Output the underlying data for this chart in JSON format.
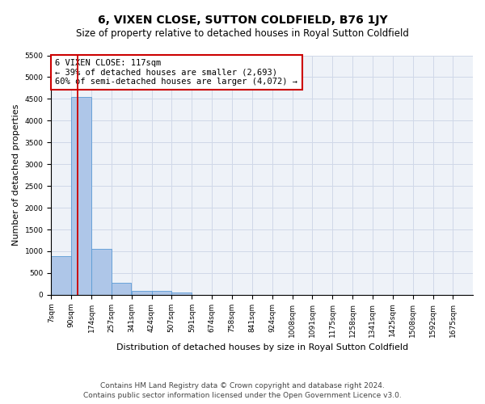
{
  "title": "6, VIXEN CLOSE, SUTTON COLDFIELD, B76 1JY",
  "subtitle": "Size of property relative to detached houses in Royal Sutton Coldfield",
  "xlabel": "Distribution of detached houses by size in Royal Sutton Coldfield",
  "ylabel": "Number of detached properties",
  "footnote1": "Contains HM Land Registry data © Crown copyright and database right 2024.",
  "footnote2": "Contains public sector information licensed under the Open Government Licence v3.0.",
  "annotation_title": "6 VIXEN CLOSE: 117sqm",
  "annotation_line1": "← 39% of detached houses are smaller (2,693)",
  "annotation_line2": "60% of semi-detached houses are larger (4,072) →",
  "bar_bins": [
    7,
    90,
    174,
    257,
    341,
    424,
    507,
    591,
    674,
    758,
    841,
    924,
    1008,
    1091,
    1175,
    1258,
    1341,
    1425,
    1508,
    1592,
    1675
  ],
  "bar_heights": [
    880,
    4540,
    1050,
    280,
    90,
    90,
    55,
    0,
    0,
    0,
    0,
    0,
    0,
    0,
    0,
    0,
    0,
    0,
    0,
    0
  ],
  "bar_color": "#aec6e8",
  "bar_edgecolor": "#5b9bd5",
  "vline_x": 117,
  "vline_color": "#cc0000",
  "ylim": [
    0,
    5500
  ],
  "yticks": [
    0,
    500,
    1000,
    1500,
    2000,
    2500,
    3000,
    3500,
    4000,
    4500,
    5000,
    5500
  ],
  "grid_color": "#d0d8e8",
  "bg_color": "#eef2f8",
  "annotation_box_edgecolor": "#cc0000",
  "annotation_box_facecolor": "white",
  "title_fontsize": 10,
  "subtitle_fontsize": 8.5,
  "annotation_fontsize": 7.5,
  "ylabel_fontsize": 8,
  "xlabel_fontsize": 8,
  "tick_fontsize": 6.5,
  "footnote_fontsize": 6.5
}
